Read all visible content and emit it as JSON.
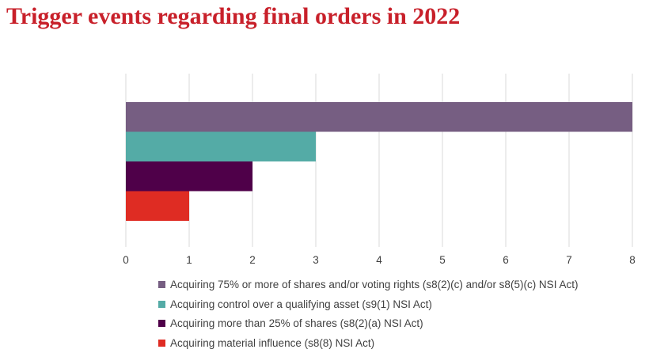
{
  "title": "Trigger events regarding final orders in 2022",
  "chart_data": {
    "type": "bar",
    "orientation": "horizontal",
    "title": "Trigger events regarding final orders in 2022",
    "xlabel": "",
    "ylabel": "",
    "xlim": [
      0,
      8
    ],
    "xticks": [
      "0",
      "1",
      "2",
      "3",
      "4",
      "5",
      "6",
      "7",
      "8"
    ],
    "grid": "vertical",
    "legend_position": "bottom",
    "series": [
      {
        "name": "Acquiring 75% or more of shares and/or voting rights (s8(2)(c) and/or s8(5)(c) NSI Act)",
        "value": 8,
        "color": "#765e82"
      },
      {
        "name": "Acquiring control over a qualifying asset (s9(1) NSI Act)",
        "value": 3,
        "color": "#54aba6"
      },
      {
        "name": "Acquiring more than 25% of shares (s8(2)(a) NSI Act)",
        "value": 2,
        "color": "#4f0049"
      },
      {
        "name": "Acquiring material influence (s8(8) NSI Act)",
        "value": 1,
        "color": "#df2c23"
      }
    ]
  }
}
